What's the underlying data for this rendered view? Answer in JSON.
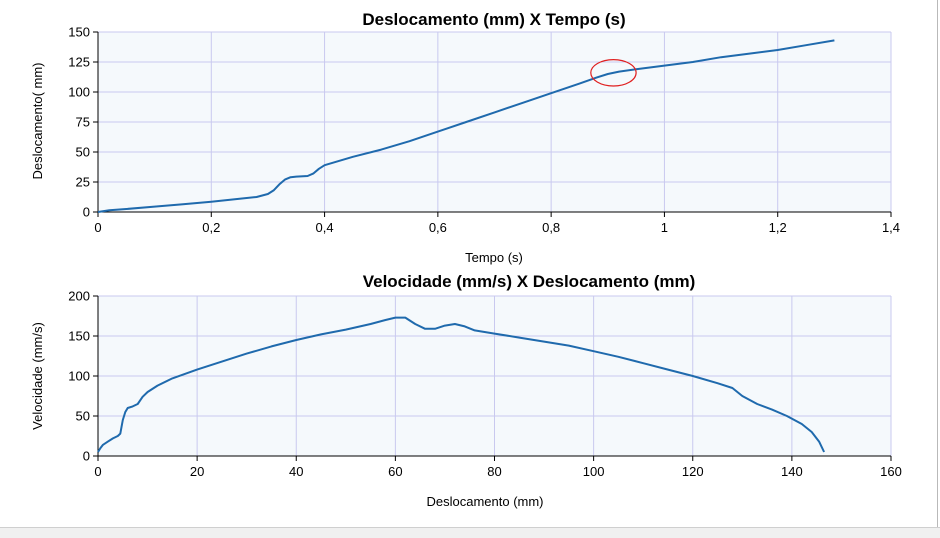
{
  "chart_data": [
    {
      "type": "line",
      "title": "Deslocamento (mm) X Tempo (s)",
      "xlabel": "Tempo (s)",
      "ylabel": "Deslocamento( mm)",
      "xlim": [
        0,
        1.4
      ],
      "ylim": [
        0,
        150
      ],
      "xticks": [
        0,
        0.2,
        0.4,
        0.6,
        0.8,
        1,
        1.2,
        1.4
      ],
      "xtick_labels": [
        "0",
        "0,2",
        "0,4",
        "0,6",
        "0,8",
        "1",
        "1,2",
        "1,4"
      ],
      "yticks": [
        0,
        25,
        50,
        75,
        100,
        125,
        150
      ],
      "ytick_labels": [
        "0",
        "25",
        "50",
        "75",
        "100",
        "125",
        "150"
      ],
      "grid": true,
      "colors": {
        "series": "#1f6aad",
        "annotation": "#e02020",
        "grid": "#c9c9ef",
        "plot_bg": "#f5f9fc"
      },
      "annotation": {
        "shape": "ellipse",
        "center": [
          0.91,
          116
        ],
        "rx": 0.04,
        "ry": 11
      },
      "series": [
        {
          "x": [
            0,
            0.02,
            0.05,
            0.1,
            0.15,
            0.2,
            0.25,
            0.28,
            0.3,
            0.31,
            0.32,
            0.33,
            0.34,
            0.35,
            0.37,
            0.38,
            0.39,
            0.4,
            0.45,
            0.5,
            0.55,
            0.6,
            0.65,
            0.7,
            0.75,
            0.8,
            0.85,
            0.88,
            0.9,
            0.92,
            0.95,
            1.0,
            1.05,
            1.1,
            1.15,
            1.2,
            1.25,
            1.3
          ],
          "y": [
            0,
            1.5,
            2.5,
            4.5,
            6.5,
            8.5,
            11,
            12.5,
            15,
            18,
            23,
            27,
            29,
            29.5,
            30,
            32,
            36,
            39,
            46,
            52,
            59,
            67,
            75,
            83,
            91,
            99,
            107,
            112,
            115,
            117,
            119,
            122,
            125,
            129,
            132,
            135,
            139,
            143
          ]
        }
      ]
    },
    {
      "type": "line",
      "title": "Velocidade (mm/s) X Deslocamento (mm)",
      "xlabel": "Deslocamento (mm)",
      "ylabel": "Velocidade (mm/s)",
      "xlim": [
        0,
        160
      ],
      "ylim": [
        0,
        200
      ],
      "xticks": [
        0,
        20,
        40,
        60,
        80,
        100,
        120,
        140,
        160
      ],
      "xtick_labels": [
        "0",
        "20",
        "40",
        "60",
        "80",
        "100",
        "120",
        "140",
        "160"
      ],
      "yticks": [
        0,
        50,
        100,
        150,
        200
      ],
      "ytick_labels": [
        "0",
        "50",
        "100",
        "150",
        "200"
      ],
      "grid": true,
      "colors": {
        "series": "#1f6aad",
        "grid": "#c9c9ef",
        "plot_bg": "#f5f9fc"
      },
      "series": [
        {
          "x": [
            0,
            0.5,
            1,
            2,
            3,
            4,
            4.5,
            5,
            5.5,
            6,
            7,
            8,
            9,
            10,
            12,
            15,
            20,
            25,
            30,
            35,
            40,
            45,
            50,
            55,
            58,
            60,
            62,
            64,
            66,
            68,
            70,
            72,
            74,
            76,
            80,
            85,
            90,
            95,
            100,
            105,
            110,
            115,
            120,
            125,
            128,
            130,
            133,
            136,
            139,
            142,
            144,
            145.5,
            146.5
          ],
          "y": [
            5,
            10,
            14,
            18,
            22,
            25,
            28,
            45,
            55,
            60,
            62,
            65,
            74,
            80,
            88,
            97,
            108,
            118,
            128,
            137,
            145,
            152,
            158,
            165,
            170,
            173,
            173,
            165,
            159,
            159,
            163,
            165,
            162,
            157,
            153,
            148,
            143,
            138,
            131,
            124,
            116,
            108,
            100,
            91,
            85,
            75,
            65,
            58,
            50,
            40,
            30,
            18,
            5
          ]
        }
      ]
    }
  ]
}
